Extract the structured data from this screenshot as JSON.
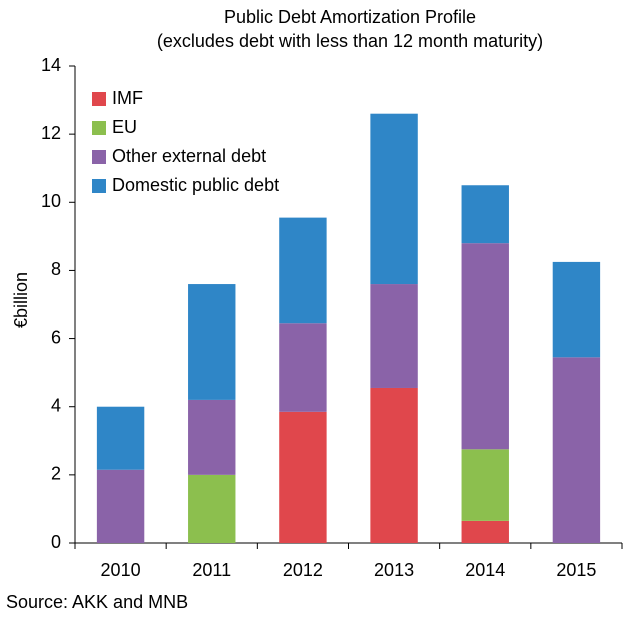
{
  "chart_data": {
    "type": "stacked_bar",
    "title": "Public Debt Amortization Profile",
    "subtitle": "(excludes debt with less than 12 month maturity)",
    "y_label": "€billion",
    "source": "Source: AKK and MNB",
    "categories": [
      "2010",
      "2011",
      "2012",
      "2013",
      "2014",
      "2015"
    ],
    "series": [
      {
        "name": "IMF",
        "color": "#e0474c",
        "values": [
          0,
          0,
          3.85,
          4.55,
          0.65,
          0
        ]
      },
      {
        "name": "EU",
        "color": "#8cbf4e",
        "values": [
          0,
          2.0,
          0,
          0,
          2.1,
          0
        ]
      },
      {
        "name": "Other external debt",
        "color": "#8a63a8",
        "values": [
          2.15,
          2.2,
          2.6,
          3.05,
          6.05,
          5.45
        ]
      },
      {
        "name": "Domestic public debt",
        "color": "#2f86c7",
        "values": [
          1.85,
          3.4,
          3.1,
          5.0,
          1.7,
          2.8
        ]
      }
    ],
    "ylim": [
      0,
      14
    ],
    "yticks": [
      0,
      2,
      4,
      6,
      8,
      10,
      12,
      14
    ],
    "grid": false,
    "legend": "top-left"
  }
}
